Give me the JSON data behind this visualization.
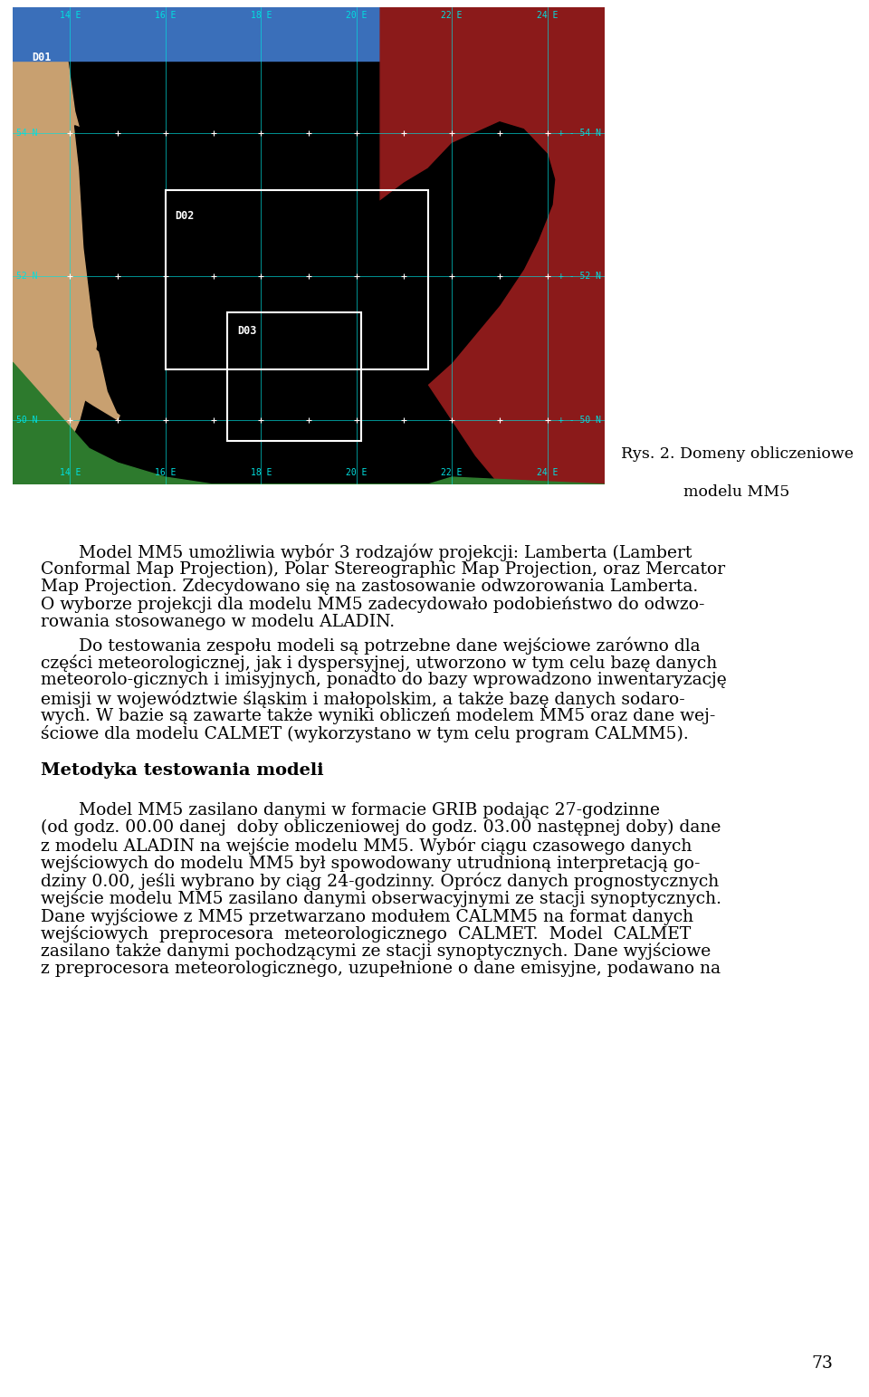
{
  "page_bg": "#ffffff",
  "caption_line1": "Rys. 2. Domeny obliczeniowe",
  "caption_line2": "modelu MM5",
  "text_color": "#000000",
  "map_blue": "#3a6fba",
  "map_red": "#8b1a1a",
  "map_brown": "#c8a070",
  "map_green": "#2d7a2d",
  "map_black": "#000000",
  "map_cyan": "#00e0e0",
  "map_white": "#ffffff",
  "font_size_body": 13.5,
  "font_size_heading": 14.0,
  "font_size_caption": 12.5,
  "font_size_map_label": 7.0,
  "font_size_domain_label": 8.5,
  "paragraph1": "Model MM5 umożliwia wybór 3 rodzajów projekcji: Lamberta (Lambert\nConformal Map Projection), Polar Stereographic Map Projection, oraz Mercator\nMap Projection. Zdecydowano się na zastosowanie odwzorowania Lamberta.\nO wyborze projekcji dla modelu MM5 zadecydowało podobieństwo do odwzo-\nrowania stosowanego w modelu ALADIN.",
  "paragraph2": "Do testowania zespołu modeli są potrzebne dane wejściowe zarówno dla\nczęści meteorologicznej, jak i dyspersyjnej, utworzono w tym celu bazę danych\nmeteorolo­gicznych i imisyjnych, ponadto do bazy wprowadzono inwentaryzację\nemisji w województwie śląskim i małopolskim, a także bazę danych sodaro-\nwych. W bazie są zawarte także wyniki obliczeń modelem MM5 oraz dane wej-\nściowe dla modelu CALMET (wykorzystano w tym celu program CALMM5).",
  "heading": "Metodyka testowania modeli",
  "paragraph3": "Model MM5 zasilano danymi w formacie GRIB podając 27-godzinne\n(od godz. 00.00 danej  doby obliczeniowej do godz. 03.00 następnej doby) dane\nz modelu ALADIN na wejście modelu MM5. Wybór ciągu czasowego danych\nwejściowych do modelu MM5 był spowodowany utrudnioną interpretacją go-\ndziny 0.00, jeśli wybrano by ciąg 24-godzinny. Oprócz danych prognostycznych\nwejście modelu MM5 zasilano danymi obserwacyjnymi ze stacji synoptycznych.\nDane wyjściowe z MM5 przetwarzano modułem CALMM5 na format danych\nwejściowych  preprocesora  meteorologicznego  CALMET.  Model  CALMET\nzasilano także danymi pochodzącymi ze stacji synoptycznych. Dane wyjściowe\nz preprocesora meteorologicznego, uzupełnione o dane emisyjne, podawano na",
  "page_number": "73"
}
